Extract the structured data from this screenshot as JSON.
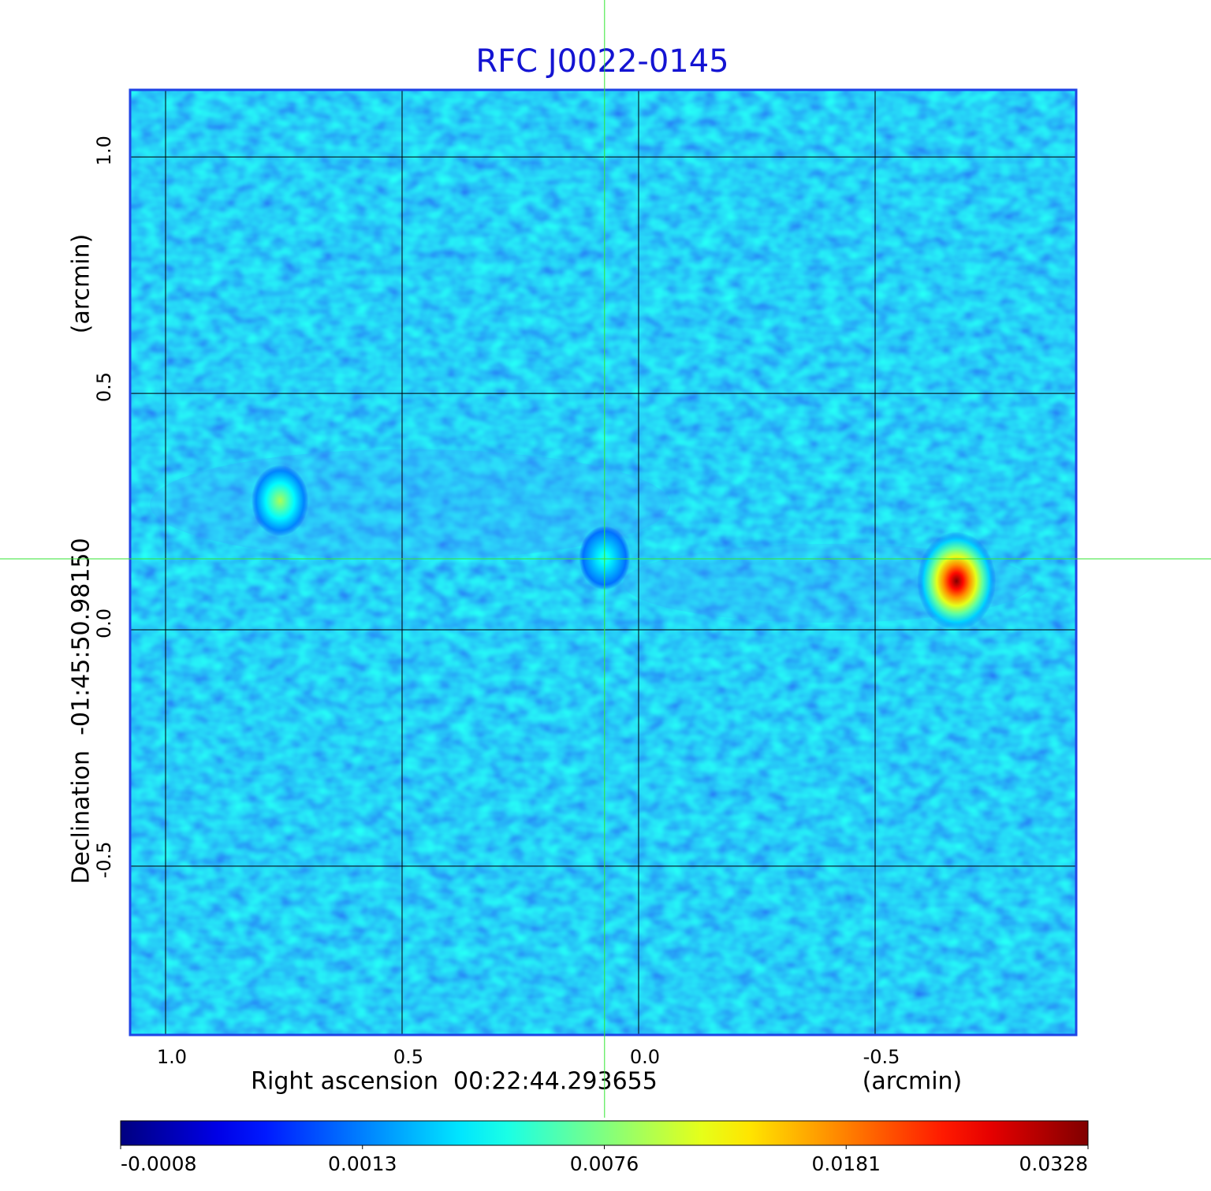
{
  "chart_data": {
    "type": "image",
    "title": "RFC J0022-0145",
    "x_label": "Right ascension  00:22:44.293655",
    "x_unit": "(arcmin)",
    "y_label": "Declination  -01:45:50.98150",
    "y_unit": "(arcmin)",
    "xlim": [
      1.075,
      -0.925
    ],
    "ylim": [
      -0.857,
      1.142
    ],
    "xticks": [
      {
        "value": 1,
        "label": "1.0"
      },
      0.5,
      {
        "value": 0,
        "label": "0.0"
      },
      -0.5
    ],
    "yticks": [
      -0.5,
      {
        "value": 0,
        "label": "0.0"
      },
      0.5,
      {
        "value": 1,
        "label": "1.0"
      }
    ],
    "grid": true,
    "crosshair": [
      0.072,
      0.15
    ],
    "sources": [
      {
        "x": 0.758,
        "y": 0.273,
        "peak": 0.009
      },
      {
        "x": 0.072,
        "y": 0.152,
        "peak": 0.005
      },
      {
        "x": -0.672,
        "y": 0.103,
        "peak": 0.0328
      }
    ],
    "colorbar": {
      "scale": "sqrt",
      "clim": [
        -0.0008,
        0.0328
      ],
      "ticks": [
        -0.0008,
        0.0013,
        0.0076,
        0.0181,
        0.0328
      ]
    }
  }
}
